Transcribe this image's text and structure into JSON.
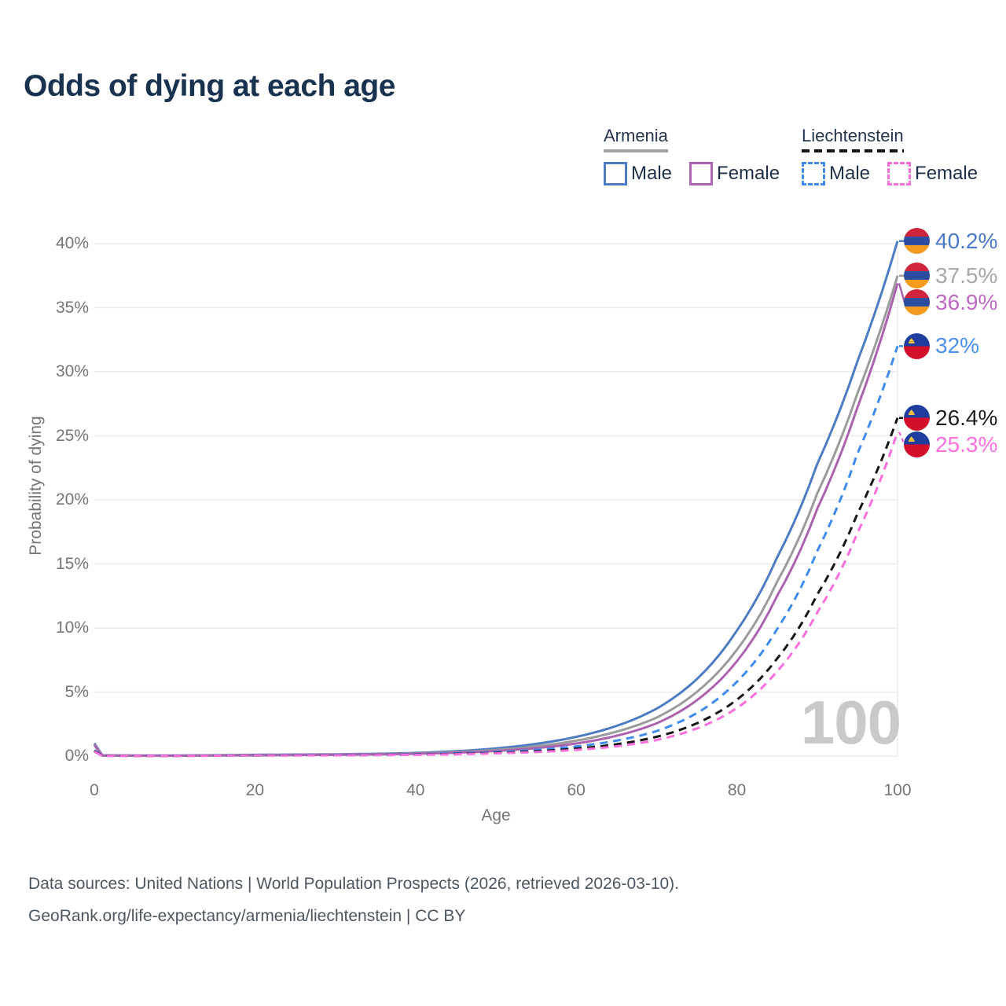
{
  "title": "Odds of dying at each age",
  "legend": {
    "groups": [
      {
        "name": "Armenia",
        "line_style": "solid",
        "header_line_color": "#a0a0a0",
        "items": [
          {
            "label": "Male",
            "color": "#4e7cc2",
            "dashed": false
          },
          {
            "label": "Female",
            "color": "#ab63af",
            "dashed": false
          }
        ]
      },
      {
        "name": "Liechtenstein",
        "line_style": "dashed",
        "header_line_color": "#141414",
        "items": [
          {
            "label": "Male",
            "color": "#3f8bef",
            "dashed": true
          },
          {
            "label": "Female",
            "color": "#fb6fdc",
            "dashed": true
          }
        ]
      }
    ]
  },
  "axes": {
    "x": {
      "title": "Age",
      "ticks": [
        0,
        20,
        40,
        60,
        80,
        100
      ],
      "range": [
        0,
        100
      ]
    },
    "y": {
      "title": "Probability of dying",
      "tick_labels": [
        "0%",
        "5%",
        "10%",
        "15%",
        "20%",
        "25%",
        "30%",
        "35%",
        "40%"
      ],
      "tick_values": [
        0,
        5,
        10,
        15,
        20,
        25,
        30,
        35,
        40
      ],
      "range": [
        0,
        40
      ]
    }
  },
  "watermark": "100",
  "footer": {
    "line1": "Data sources: United Nations | World Population Prospects (2026, retrieved 2026-03-10).",
    "line2": "GeoRank.org/life-expectancy/armenia/liechtenstein | CC BY"
  },
  "flag_colors": {
    "armenia": {
      "red": "#d0243c",
      "blue": "#2b4da0",
      "orange": "#f59b1e"
    },
    "liechtenstein": {
      "blue": "#1f3d9e",
      "red": "#d30f2c",
      "gold": "#f5c83a"
    }
  },
  "grid_color": "#ececec",
  "chart_data": {
    "type": "line",
    "title": "Odds of dying at each age",
    "xlabel": "Age",
    "ylabel": "Probability of dying",
    "xlim": [
      0,
      100
    ],
    "ylim": [
      0,
      40
    ],
    "y_unit": "percent",
    "grid": "horizontal",
    "legend_position": "top-right",
    "x": [
      0,
      1,
      5,
      10,
      15,
      20,
      25,
      30,
      35,
      40,
      45,
      50,
      55,
      60,
      65,
      70,
      75,
      80,
      85,
      90,
      95,
      100
    ],
    "series": [
      {
        "name": "Armenia — Male",
        "country": "armenia",
        "sex": "male",
        "color": "#4e7cc2",
        "label_color": "#4b79c9",
        "dashed": false,
        "end_label": "40.2%",
        "end_value": 40.2,
        "values": [
          1.0,
          0.06,
          0.04,
          0.04,
          0.07,
          0.1,
          0.12,
          0.14,
          0.18,
          0.25,
          0.38,
          0.6,
          0.95,
          1.5,
          2.35,
          3.7,
          6.0,
          9.8,
          15.5,
          22.8,
          30.8,
          40.2
        ]
      },
      {
        "name": "Armenia — Both sexes",
        "country": "armenia",
        "sex": "both",
        "color": "#9b9b9b",
        "label_color": "#a8a8a8",
        "dashed": false,
        "end_label": "37.5%",
        "end_value": 37.5,
        "values": [
          0.9,
          0.05,
          0.03,
          0.03,
          0.06,
          0.08,
          0.1,
          0.12,
          0.15,
          0.21,
          0.31,
          0.48,
          0.76,
          1.2,
          1.9,
          3.0,
          5.0,
          8.3,
          13.6,
          20.5,
          28.3,
          37.5
        ]
      },
      {
        "name": "Armenia — Female",
        "country": "armenia",
        "sex": "female",
        "color": "#ab63af",
        "label_color": "#bd6bc2",
        "dashed": false,
        "end_label": "36.9%",
        "end_value": 36.9,
        "values": [
          0.85,
          0.05,
          0.03,
          0.03,
          0.05,
          0.06,
          0.08,
          0.1,
          0.13,
          0.18,
          0.26,
          0.4,
          0.62,
          0.98,
          1.58,
          2.55,
          4.35,
          7.4,
          12.5,
          19.3,
          27.2,
          36.9
        ]
      },
      {
        "name": "Liechtenstein — Male",
        "country": "liechtenstein",
        "sex": "male",
        "color": "#3f8bef",
        "label_color": "#4b90f2",
        "dashed": true,
        "end_label": "32%",
        "end_value": 32,
        "values": [
          0.45,
          0.03,
          0.02,
          0.02,
          0.04,
          0.06,
          0.08,
          0.09,
          0.11,
          0.15,
          0.21,
          0.31,
          0.48,
          0.75,
          1.2,
          1.95,
          3.35,
          5.8,
          9.9,
          16.0,
          23.6,
          32.0
        ]
      },
      {
        "name": "Liechtenstein — Both sexes",
        "country": "liechtenstein",
        "sex": "both",
        "color": "#161616",
        "label_color": "#1f1f1f",
        "dashed": true,
        "end_label": "26.4%",
        "end_value": 26.4,
        "values": [
          0.4,
          0.03,
          0.02,
          0.02,
          0.03,
          0.05,
          0.06,
          0.07,
          0.09,
          0.12,
          0.17,
          0.25,
          0.38,
          0.58,
          0.92,
          1.5,
          2.55,
          4.4,
          7.6,
          12.6,
          18.9,
          26.4
        ]
      },
      {
        "name": "Liechtenstein — Female",
        "country": "liechtenstein",
        "sex": "female",
        "color": "#fb6fdc",
        "label_color": "#ff70df",
        "dashed": true,
        "end_label": "25.3%",
        "end_value": 25.3,
        "values": [
          0.35,
          0.02,
          0.01,
          0.01,
          0.03,
          0.04,
          0.05,
          0.06,
          0.08,
          0.1,
          0.14,
          0.21,
          0.31,
          0.48,
          0.76,
          1.25,
          2.15,
          3.75,
          6.6,
          11.2,
          17.4,
          25.3
        ]
      }
    ]
  }
}
